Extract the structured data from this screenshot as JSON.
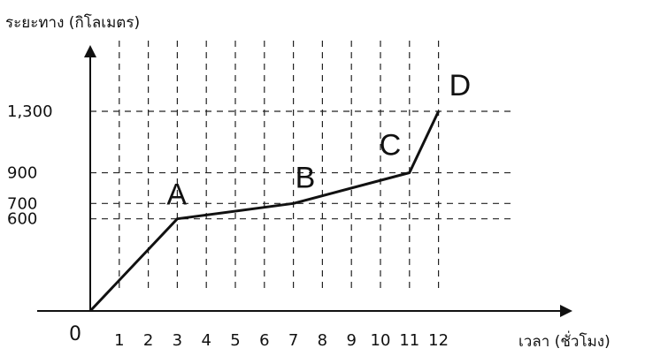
{
  "chart_data": {
    "type": "line",
    "ylabel": "ระยะทาง (กิโลเมตร)",
    "xlabel": "เวลา (ชั่วโมง)",
    "origin_label": "0",
    "x_ticks": [
      1,
      2,
      3,
      4,
      5,
      6,
      7,
      8,
      9,
      10,
      11,
      12
    ],
    "y_ticks": [
      {
        "value": 600,
        "label": "600"
      },
      {
        "value": 700,
        "label": "700"
      },
      {
        "value": 900,
        "label": "900"
      },
      {
        "value": 1300,
        "label": "1,300"
      }
    ],
    "xlim": [
      0,
      15
    ],
    "ylim": [
      0,
      1650
    ],
    "grid": "dashed",
    "series": [
      {
        "x": [
          0,
          3,
          7,
          11,
          12
        ],
        "y": [
          0,
          600,
          700,
          900,
          1300
        ]
      }
    ],
    "point_labels": [
      {
        "text": "A",
        "x": 3,
        "y": 600
      },
      {
        "text": "B",
        "x": 7,
        "y": 700
      },
      {
        "text": "C",
        "x": 11,
        "y": 900
      },
      {
        "text": "D",
        "x": 12,
        "y": 1300
      }
    ]
  }
}
